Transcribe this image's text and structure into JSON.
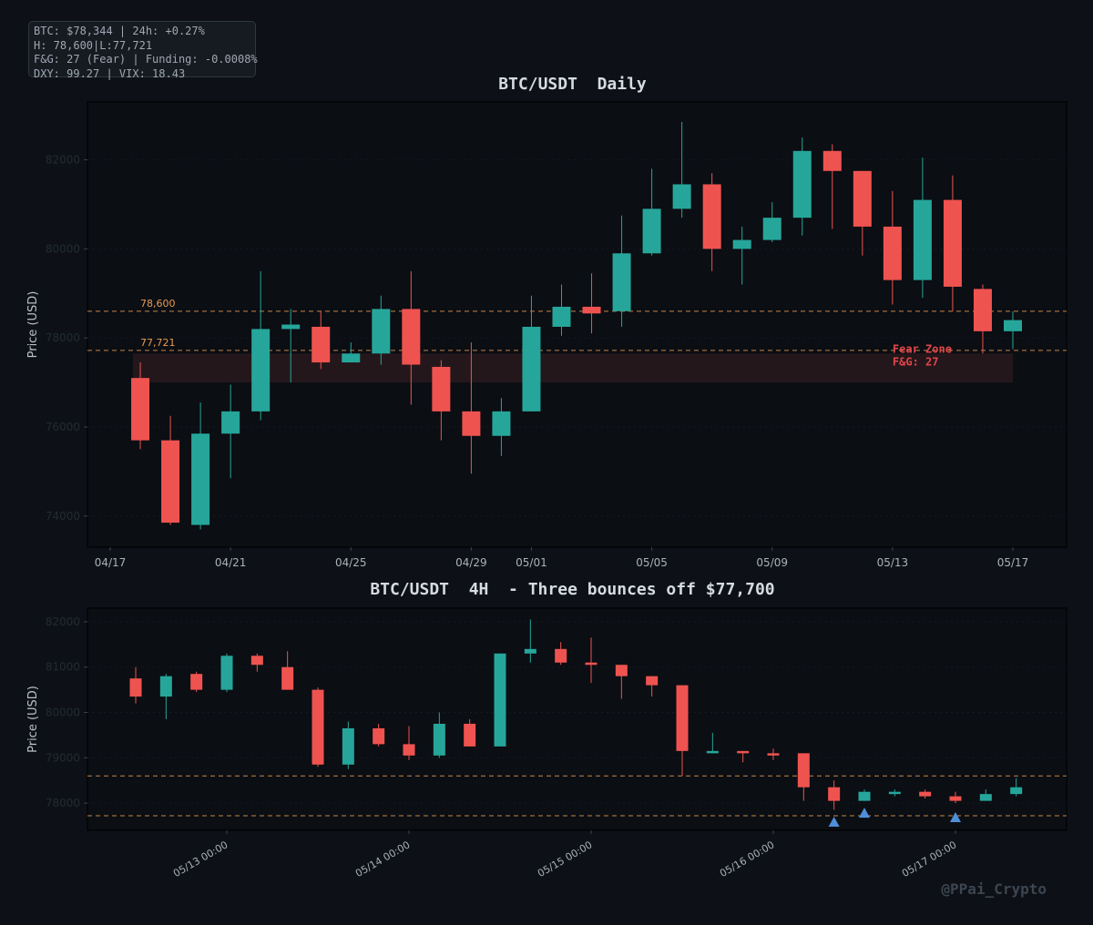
{
  "info_box": {
    "lines": [
      "BTC: $78,344 | 24h: +0.27%",
      "H: 78,600|L:77,721",
      "F&G: 27 (Fear) | Funding: -0.0008%",
      "DXY: 99.27 | VIX: 18.43"
    ]
  },
  "watermark": "@PPai_Crypto",
  "colors": {
    "background": "#0d1117",
    "panel": "#0b0e13",
    "bullish": "#26a69a",
    "bearish": "#ef5350",
    "level_line": "#e89a55",
    "fear_zone": "#3a1f22",
    "fear_text": "#e0454a",
    "bounce_marker": "#4f8fd9",
    "title_text": "#d6dbe0",
    "axis_text": "#9aa3ad"
  },
  "chart_data": [
    {
      "type": "candlestick",
      "title": "BTC/USDT  Daily",
      "ylabel": "Price (USD)",
      "ylim": [
        73300,
        83300
      ],
      "yticks": [
        74000,
        76000,
        78000,
        80000,
        82000
      ],
      "x_ticks": [
        {
          "label": "04/17",
          "at": "04/17"
        },
        {
          "label": "04/21",
          "at": "04/21"
        },
        {
          "label": "04/25",
          "at": "04/25"
        },
        {
          "label": "04/29",
          "at": "04/29"
        },
        {
          "label": "05/01",
          "at": "05/01"
        },
        {
          "label": "05/05",
          "at": "05/05"
        },
        {
          "label": "05/09",
          "at": "05/09"
        },
        {
          "label": "05/13",
          "at": "05/13"
        },
        {
          "label": "05/17",
          "at": "05/17"
        }
      ],
      "candles": [
        {
          "date": "04/18",
          "open": 77100,
          "high": 77450,
          "low": 75500,
          "close": 75700
        },
        {
          "date": "04/19",
          "open": 75700,
          "high": 76250,
          "low": 73800,
          "close": 73850
        },
        {
          "date": "04/20",
          "open": 73800,
          "high": 76550,
          "low": 73700,
          "close": 75850
        },
        {
          "date": "04/21",
          "open": 75850,
          "high": 76950,
          "low": 74850,
          "close": 76350
        },
        {
          "date": "04/22",
          "open": 76350,
          "high": 79500,
          "low": 76150,
          "close": 78200
        },
        {
          "date": "04/23",
          "open": 78200,
          "high": 78650,
          "low": 77000,
          "close": 78300
        },
        {
          "date": "04/24",
          "open": 78250,
          "high": 78600,
          "low": 77300,
          "close": 77450
        },
        {
          "date": "04/25",
          "open": 77450,
          "high": 77900,
          "low": 77450,
          "close": 77650
        },
        {
          "date": "04/26",
          "open": 77650,
          "high": 78950,
          "low": 77400,
          "close": 78650
        },
        {
          "date": "04/27",
          "open": 78650,
          "high": 79500,
          "low": 76500,
          "close": 77400
        },
        {
          "date": "04/28",
          "open": 77350,
          "high": 77500,
          "low": 75700,
          "close": 76350
        },
        {
          "date": "04/29",
          "open": 76350,
          "high": 77900,
          "low": 74950,
          "close": 75800
        },
        {
          "date": "04/30",
          "open": 75800,
          "high": 76650,
          "low": 75350,
          "close": 76350
        },
        {
          "date": "05/01",
          "open": 76350,
          "high": 78950,
          "low": 76350,
          "close": 78250
        },
        {
          "date": "05/02",
          "open": 78250,
          "high": 79200,
          "low": 78050,
          "close": 78700
        },
        {
          "date": "05/03",
          "open": 78700,
          "high": 79450,
          "low": 78100,
          "close": 78550
        },
        {
          "date": "05/04",
          "open": 78600,
          "high": 80750,
          "low": 78250,
          "close": 79900
        },
        {
          "date": "05/05",
          "open": 79900,
          "high": 81800,
          "low": 79850,
          "close": 80900
        },
        {
          "date": "05/06",
          "open": 80900,
          "high": 82850,
          "low": 80700,
          "close": 81450
        },
        {
          "date": "05/07",
          "open": 81450,
          "high": 81700,
          "low": 79500,
          "close": 80000
        },
        {
          "date": "05/08",
          "open": 80000,
          "high": 80500,
          "low": 79200,
          "close": 80200
        },
        {
          "date": "05/09",
          "open": 80200,
          "high": 81050,
          "low": 80150,
          "close": 80700
        },
        {
          "date": "05/10",
          "open": 80700,
          "high": 82500,
          "low": 80300,
          "close": 82200
        },
        {
          "date": "05/11",
          "open": 82200,
          "high": 82350,
          "low": 80450,
          "close": 81750
        },
        {
          "date": "05/12",
          "open": 81750,
          "high": 81750,
          "low": 79850,
          "close": 80500
        },
        {
          "date": "05/13",
          "open": 80500,
          "high": 81300,
          "low": 78750,
          "close": 79300
        },
        {
          "date": "05/14",
          "open": 79300,
          "high": 82050,
          "low": 78900,
          "close": 81100
        },
        {
          "date": "05/15",
          "open": 81100,
          "high": 81650,
          "low": 78600,
          "close": 79150
        },
        {
          "date": "05/16",
          "open": 79100,
          "high": 79200,
          "low": 77650,
          "close": 78150
        },
        {
          "date": "05/17",
          "open": 78150,
          "high": 78600,
          "low": 77750,
          "close": 78400
        }
      ],
      "levels": [
        {
          "value": 78600,
          "label": "78,600"
        },
        {
          "value": 77721,
          "label": "77,721"
        }
      ],
      "zone": {
        "low": 77000,
        "high": 77650,
        "from": "04/18",
        "to": "05/17"
      },
      "annotation": {
        "lines": [
          "Fear Zone",
          "F&G: 27"
        ],
        "date": "05/14",
        "price": 77500
      }
    },
    {
      "type": "candlestick",
      "title": "BTC/USDT  4H  - Three bounces off $77,700",
      "ylabel": "Price (USD)",
      "ylim": [
        77400,
        82300
      ],
      "yticks": [
        78000,
        79000,
        80000,
        81000,
        82000
      ],
      "x_ticks": [
        {
          "label": "05/13 00:00",
          "at": 0
        },
        {
          "label": "05/14 00:00",
          "at": 6
        },
        {
          "label": "05/15 00:00",
          "at": 12
        },
        {
          "label": "05/16 00:00",
          "at": 18
        },
        {
          "label": "05/17 00:00",
          "at": 24
        }
      ],
      "first_candle_at": -3,
      "candles": [
        {
          "open": 80750,
          "high": 81000,
          "low": 80200,
          "close": 80350
        },
        {
          "open": 80350,
          "high": 80850,
          "low": 79850,
          "close": 80800
        },
        {
          "open": 80850,
          "high": 80900,
          "low": 80450,
          "close": 80500
        },
        {
          "open": 80500,
          "high": 81300,
          "low": 80450,
          "close": 81250
        },
        {
          "open": 81250,
          "high": 81300,
          "low": 80900,
          "close": 81050
        },
        {
          "open": 81000,
          "high": 81350,
          "low": 80500,
          "close": 80500
        },
        {
          "open": 80500,
          "high": 80550,
          "low": 78800,
          "close": 78850
        },
        {
          "open": 78850,
          "high": 79800,
          "low": 78750,
          "close": 79650
        },
        {
          "open": 79650,
          "high": 79750,
          "low": 79250,
          "close": 79300
        },
        {
          "open": 79300,
          "high": 79700,
          "low": 78950,
          "close": 79050
        },
        {
          "open": 79050,
          "high": 80000,
          "low": 79000,
          "close": 79750
        },
        {
          "open": 79750,
          "high": 79850,
          "low": 79250,
          "close": 79250
        },
        {
          "open": 79250,
          "high": 81300,
          "low": 79250,
          "close": 81300
        },
        {
          "open": 81300,
          "high": 82050,
          "low": 81100,
          "close": 81400
        },
        {
          "open": 81400,
          "high": 81550,
          "low": 81050,
          "close": 81100
        },
        {
          "open": 81100,
          "high": 81650,
          "low": 80650,
          "close": 81050
        },
        {
          "open": 81050,
          "high": 81050,
          "low": 80300,
          "close": 80800
        },
        {
          "open": 80800,
          "high": 80800,
          "low": 80350,
          "close": 80600
        },
        {
          "open": 80600,
          "high": 80600,
          "low": 78600,
          "close": 79150
        },
        {
          "open": 79150,
          "high": 79550,
          "low": 79100,
          "close": 79150
        },
        {
          "open": 79150,
          "high": 79150,
          "low": 78900,
          "close": 79100
        },
        {
          "open": 79100,
          "high": 79200,
          "low": 78950,
          "close": 79050
        },
        {
          "open": 79100,
          "high": 79100,
          "low": 78050,
          "close": 78350
        },
        {
          "open": 78350,
          "high": 78500,
          "low": 77850,
          "close": 78050
        },
        {
          "open": 78050,
          "high": 78300,
          "low": 78050,
          "close": 78250
        },
        {
          "open": 78200,
          "high": 78300,
          "low": 78150,
          "close": 78250
        },
        {
          "open": 78250,
          "high": 78300,
          "low": 78100,
          "close": 78150
        },
        {
          "open": 78150,
          "high": 78250,
          "low": 78000,
          "close": 78050
        },
        {
          "open": 78050,
          "high": 78300,
          "low": 78050,
          "close": 78200
        },
        {
          "open": 78200,
          "high": 78550,
          "low": 78150,
          "close": 78350
        }
      ],
      "levels": [
        {
          "value": 78600,
          "label": ""
        },
        {
          "value": 77721,
          "label": ""
        }
      ],
      "bounce_markers": [
        {
          "candle": 23,
          "price": 77580
        },
        {
          "candle": 24,
          "price": 77780
        },
        {
          "candle": 27,
          "price": 77680
        }
      ]
    }
  ]
}
